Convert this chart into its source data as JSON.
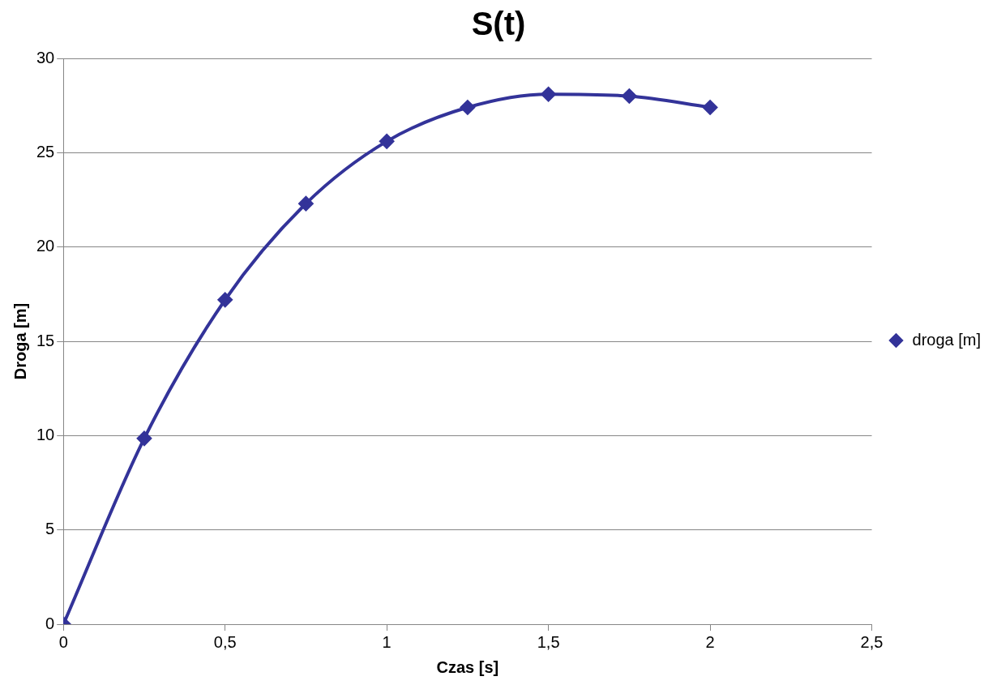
{
  "chart_data": {
    "type": "line",
    "title": "S(t)",
    "xlabel": "Czas [s]",
    "ylabel": "Droga [m]",
    "x": [
      0,
      0.25,
      0.5,
      0.75,
      1,
      1.25,
      1.5,
      1.75,
      2
    ],
    "series": [
      {
        "name": "droga [m]",
        "color": "#333399",
        "values": [
          0,
          9.85,
          17.2,
          22.3,
          25.6,
          27.4,
          28.1,
          28.0,
          27.4
        ]
      }
    ],
    "xlim": [
      0,
      2.5
    ],
    "ylim": [
      0,
      30
    ],
    "xticks": [
      0,
      {
        "value": 0.5,
        "label": "0,5"
      },
      1,
      {
        "value": 1.5,
        "label": "1,5"
      },
      2,
      {
        "value": 2.5,
        "label": "2,5"
      }
    ],
    "yticks": [
      0,
      5,
      10,
      15,
      20,
      25,
      30
    ],
    "grid": "y",
    "legend": "right",
    "marker": "diamond",
    "line_style": "solid"
  }
}
